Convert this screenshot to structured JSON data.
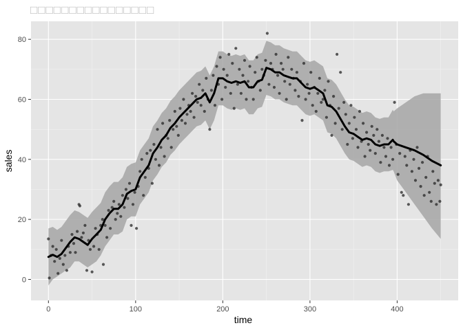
{
  "chart_data": {
    "type": "scatter",
    "title": "□□□□□□□□□□□□□□□□",
    "xlabel": "time",
    "ylabel": "sales",
    "xlim": [
      -20,
      470
    ],
    "ylim": [
      -7,
      86
    ],
    "x_ticks": [
      0,
      100,
      200,
      300,
      400
    ],
    "y_ticks": [
      0,
      20,
      40,
      60,
      80
    ],
    "grid": true,
    "legend": "none",
    "colors": {
      "panel": "#e5e5e5",
      "grid_major": "#ffffff",
      "grid_minor": "#f2f2f2",
      "ribbon": "#a6a6a6",
      "line": "#000000",
      "points": "#262626"
    },
    "series": [
      {
        "type": "line",
        "x": [
          0,
          5,
          10,
          15,
          20,
          25,
          30,
          35,
          40,
          45,
          50,
          55,
          60,
          65,
          70,
          75,
          80,
          85,
          90,
          95,
          100,
          105,
          110,
          115,
          120,
          125,
          130,
          135,
          140,
          145,
          150,
          155,
          160,
          165,
          170,
          175,
          180,
          185,
          190,
          195,
          200,
          205,
          210,
          215,
          220,
          225,
          230,
          235,
          240,
          245,
          250,
          255,
          260,
          265,
          270,
          275,
          280,
          285,
          290,
          295,
          300,
          305,
          310,
          315,
          320,
          325,
          330,
          335,
          340,
          345,
          350,
          355,
          360,
          365,
          370,
          375,
          380,
          385,
          390,
          395,
          396,
          400,
          410,
          420,
          430,
          440,
          450
        ],
        "y": [
          7.5,
          8.2,
          7.5,
          8.5,
          10.5,
          12.5,
          14,
          13.5,
          12.5,
          11.5,
          13.5,
          15,
          16.5,
          20,
          22,
          23.5,
          23.5,
          25,
          28.5,
          29.5,
          30,
          34,
          36,
          38,
          42,
          44,
          46.5,
          48,
          50.5,
          52,
          54,
          55.5,
          57,
          58.5,
          60,
          60.5,
          62,
          59,
          62,
          67,
          67,
          66,
          65.5,
          66,
          65.5,
          66,
          64,
          64,
          66,
          66.5,
          70.5,
          70,
          69,
          69,
          68,
          67.5,
          67,
          67,
          65.5,
          64,
          63.5,
          64,
          63,
          62,
          58,
          57.5,
          56,
          53.5,
          51,
          49,
          48.5,
          47.5,
          46.5,
          47,
          46.5,
          45,
          44.5,
          45,
          45,
          46.5,
          46,
          45,
          44,
          43,
          41.5,
          39.5,
          38
        ],
        "ci_lower": [
          -2,
          0,
          1,
          2,
          3,
          4,
          6,
          6,
          5,
          4,
          5,
          6,
          8,
          11,
          13,
          15,
          15,
          16,
          20,
          21,
          21,
          25,
          27,
          29,
          33,
          35,
          37.5,
          39,
          41.5,
          43,
          45,
          46.5,
          48,
          49.5,
          51,
          51.5,
          53,
          50,
          53,
          58,
          58,
          57,
          56.5,
          57,
          56.5,
          57,
          55,
          55,
          57,
          57.5,
          61.5,
          61,
          60,
          60,
          59,
          58.5,
          58,
          58,
          56.5,
          55,
          54.5,
          55,
          54,
          53,
          49,
          48.5,
          47,
          44.5,
          42,
          40,
          39.5,
          38.5,
          37.5,
          38,
          37.5,
          36,
          35.5,
          36,
          36,
          36.5,
          36,
          33,
          29,
          25,
          21,
          17,
          13.5
        ],
        "ci_upper": [
          17,
          17.5,
          16.5,
          17.5,
          19.5,
          21.5,
          23,
          22.5,
          21.5,
          20.5,
          22.5,
          24,
          25.5,
          29,
          31,
          32.5,
          32.5,
          34,
          37.5,
          38.5,
          39,
          43,
          45,
          47,
          51,
          53,
          55.5,
          57,
          59.5,
          61,
          63,
          64.5,
          66,
          67.5,
          69,
          69.5,
          71,
          68,
          71,
          76,
          76,
          75,
          74.5,
          75,
          74.5,
          75,
          73,
          73,
          75,
          75.5,
          79.5,
          79,
          78,
          78,
          77,
          76.5,
          76,
          76,
          74.5,
          73,
          72.5,
          73,
          72,
          71,
          67,
          66.5,
          65,
          62.5,
          60,
          58,
          57.5,
          56.5,
          55.5,
          56,
          55.5,
          54,
          53.5,
          54,
          54,
          56.5,
          56,
          57,
          59,
          61,
          62,
          62,
          62
        ]
      },
      {
        "type": "scatter",
        "points": [
          [
            0,
            13.5
          ],
          [
            1,
            0.5
          ],
          [
            3,
            8
          ],
          [
            5,
            11
          ],
          [
            7,
            6
          ],
          [
            9,
            10
          ],
          [
            11,
            2
          ],
          [
            13,
            7
          ],
          [
            15,
            13
          ],
          [
            17,
            5
          ],
          [
            19,
            8
          ],
          [
            21,
            3
          ],
          [
            23,
            11
          ],
          [
            25,
            9
          ],
          [
            27,
            15
          ],
          [
            29,
            12
          ],
          [
            31,
            9
          ],
          [
            33,
            16
          ],
          [
            35,
            25
          ],
          [
            36,
            24.5
          ],
          [
            38,
            14
          ],
          [
            40,
            15.5
          ],
          [
            42,
            18
          ],
          [
            44,
            3
          ],
          [
            46,
            13
          ],
          [
            48,
            10
          ],
          [
            50,
            2.5
          ],
          [
            52,
            11
          ],
          [
            54,
            17
          ],
          [
            56,
            15
          ],
          [
            58,
            10
          ],
          [
            60,
            18
          ],
          [
            62,
            20
          ],
          [
            63,
            5
          ],
          [
            65,
            18
          ],
          [
            67,
            14
          ],
          [
            69,
            23
          ],
          [
            71,
            17
          ],
          [
            73,
            24
          ],
          [
            75,
            26
          ],
          [
            77,
            20
          ],
          [
            79,
            22
          ],
          [
            81,
            25
          ],
          [
            83,
            21
          ],
          [
            85,
            28
          ],
          [
            87,
            24
          ],
          [
            89,
            30
          ],
          [
            91,
            27
          ],
          [
            93,
            32
          ],
          [
            95,
            18
          ],
          [
            97,
            25
          ],
          [
            99,
            29
          ],
          [
            101,
            17
          ],
          [
            103,
            31
          ],
          [
            105,
            36
          ],
          [
            107,
            40
          ],
          [
            109,
            28
          ],
          [
            111,
            34
          ],
          [
            113,
            42
          ],
          [
            115,
            37
          ],
          [
            117,
            43
          ],
          [
            119,
            32
          ],
          [
            121,
            45
          ],
          [
            123,
            40
          ],
          [
            125,
            50
          ],
          [
            127,
            38
          ],
          [
            129,
            44
          ],
          [
            131,
            52
          ],
          [
            133,
            41
          ],
          [
            135,
            48
          ],
          [
            137,
            47
          ],
          [
            139,
            53
          ],
          [
            141,
            44
          ],
          [
            143,
            50
          ],
          [
            145,
            56
          ],
          [
            147,
            51
          ],
          [
            149,
            48
          ],
          [
            151,
            57
          ],
          [
            153,
            53
          ],
          [
            155,
            60
          ],
          [
            157,
            52
          ],
          [
            159,
            55
          ],
          [
            161,
            58
          ],
          [
            163,
            56
          ],
          [
            165,
            62
          ],
          [
            167,
            54
          ],
          [
            169,
            61
          ],
          [
            171,
            59
          ],
          [
            173,
            65
          ],
          [
            175,
            58
          ],
          [
            177,
            63
          ],
          [
            179,
            56
          ],
          [
            181,
            67
          ],
          [
            183,
            60
          ],
          [
            185,
            50
          ],
          [
            187,
            63
          ],
          [
            189,
            68
          ],
          [
            191,
            58
          ],
          [
            193,
            71
          ],
          [
            195,
            65
          ],
          [
            197,
            74
          ],
          [
            199,
            60
          ],
          [
            201,
            70
          ],
          [
            203,
            64
          ],
          [
            205,
            68
          ],
          [
            207,
            75
          ],
          [
            209,
            62
          ],
          [
            211,
            72
          ],
          [
            213,
            57
          ],
          [
            215,
            77
          ],
          [
            217,
            65
          ],
          [
            219,
            70
          ],
          [
            221,
            62
          ],
          [
            223,
            68
          ],
          [
            225,
            73
          ],
          [
            227,
            60
          ],
          [
            229,
            66
          ],
          [
            231,
            71
          ],
          [
            233,
            64
          ],
          [
            235,
            60
          ],
          [
            237,
            69
          ],
          [
            239,
            74
          ],
          [
            241,
            66
          ],
          [
            243,
            63
          ],
          [
            245,
            70
          ],
          [
            247,
            68
          ],
          [
            249,
            73
          ],
          [
            251,
            82
          ],
          [
            253,
            65
          ],
          [
            255,
            72
          ],
          [
            257,
            70
          ],
          [
            259,
            64
          ],
          [
            261,
            75
          ],
          [
            263,
            68
          ],
          [
            265,
            62
          ],
          [
            267,
            72
          ],
          [
            269,
            70
          ],
          [
            271,
            66
          ],
          [
            273,
            60
          ],
          [
            275,
            74
          ],
          [
            277,
            65
          ],
          [
            279,
            70
          ],
          [
            281,
            67
          ],
          [
            283,
            63
          ],
          [
            285,
            69
          ],
          [
            287,
            61
          ],
          [
            289,
            66
          ],
          [
            291,
            53
          ],
          [
            293,
            72
          ],
          [
            295,
            60
          ],
          [
            297,
            65
          ],
          [
            299,
            62
          ],
          [
            301,
            69
          ],
          [
            303,
            58
          ],
          [
            305,
            64
          ],
          [
            307,
            56
          ],
          [
            309,
            62
          ],
          [
            311,
            67
          ],
          [
            313,
            59
          ],
          [
            315,
            60
          ],
          [
            317,
            63
          ],
          [
            319,
            54
          ],
          [
            321,
            66
          ],
          [
            323,
            58
          ],
          [
            325,
            48
          ],
          [
            327,
            61
          ],
          [
            329,
            52
          ],
          [
            331,
            75
          ],
          [
            333,
            57
          ],
          [
            335,
            69
          ],
          [
            337,
            50
          ],
          [
            339,
            59
          ],
          [
            341,
            55
          ],
          [
            343,
            45
          ],
          [
            345,
            52
          ],
          [
            347,
            58
          ],
          [
            349,
            47
          ],
          [
            351,
            54
          ],
          [
            353,
            50
          ],
          [
            355,
            44
          ],
          [
            357,
            56
          ],
          [
            359,
            46
          ],
          [
            361,
            52
          ],
          [
            363,
            41
          ],
          [
            365,
            49
          ],
          [
            367,
            45
          ],
          [
            369,
            43
          ],
          [
            371,
            51
          ],
          [
            373,
            48
          ],
          [
            375,
            42
          ],
          [
            377,
            50
          ],
          [
            379,
            46
          ],
          [
            381,
            39
          ],
          [
            383,
            48
          ],
          [
            385,
            44
          ],
          [
            387,
            41
          ],
          [
            389,
            47
          ],
          [
            391,
            38
          ],
          [
            393,
            44
          ],
          [
            395,
            40
          ],
          [
            397,
            59
          ],
          [
            399,
            45
          ],
          [
            401,
            35
          ],
          [
            403,
            42
          ],
          [
            405,
            29
          ],
          [
            407,
            28
          ],
          [
            409,
            41
          ],
          [
            411,
            38
          ],
          [
            413,
            25
          ],
          [
            415,
            43
          ],
          [
            417,
            36
          ],
          [
            419,
            40
          ],
          [
            421,
            33
          ],
          [
            423,
            44
          ],
          [
            425,
            37
          ],
          [
            427,
            31
          ],
          [
            429,
            39
          ],
          [
            431,
            28
          ],
          [
            433,
            34
          ],
          [
            435,
            41
          ],
          [
            437,
            29
          ],
          [
            439,
            26
          ],
          [
            441,
            36
          ],
          [
            443,
            32
          ],
          [
            445,
            25
          ],
          [
            447,
            33
          ],
          [
            449,
            26
          ],
          [
            450,
            31.5
          ]
        ]
      }
    ]
  }
}
